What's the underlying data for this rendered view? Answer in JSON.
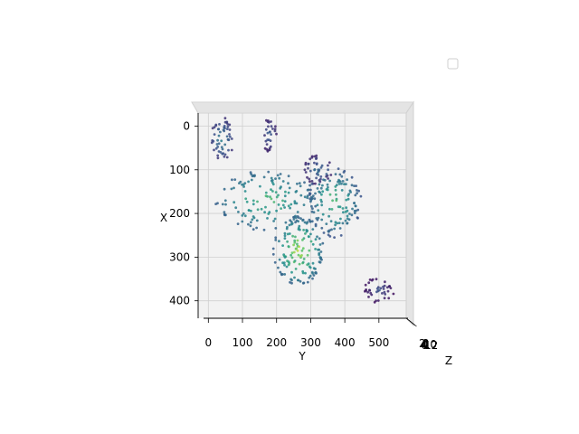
{
  "chart_data": {
    "type": "scatter",
    "projection": "3d",
    "view": "top-down",
    "xlabel": "Y",
    "ylabel": "X",
    "zlabel": "Z",
    "xlim": [
      -30,
      580
    ],
    "ylim": [
      440,
      -30
    ],
    "x_ticks": [
      0,
      100,
      200,
      300,
      400,
      500
    ],
    "y_ticks": [
      0,
      100,
      200,
      300,
      400
    ],
    "z_tick_labels": [
      "2",
      "4",
      "6",
      "8",
      "10",
      "12"
    ],
    "colormap": "viridis",
    "colors": {
      "pane": "#f2f2f2",
      "grid": "#cfcfcf",
      "low": "#46327e",
      "mid": "#277f8e",
      "high": "#fde725"
    },
    "legend": {
      "placement": "top-right",
      "entries": []
    },
    "grid": true,
    "clusters": [
      {
        "cx": 40,
        "cy": 30,
        "rx": 35,
        "ry": 50,
        "n": 55,
        "zmin": 0.15,
        "zmax": 0.5
      },
      {
        "cx": 180,
        "cy": 20,
        "rx": 22,
        "ry": 40,
        "n": 30,
        "zmin": 0.1,
        "zmax": 0.35
      },
      {
        "cx": 170,
        "cy": 170,
        "rx": 150,
        "ry": 70,
        "n": 140,
        "zmin": 0.3,
        "zmax": 0.75
      },
      {
        "cx": 320,
        "cy": 100,
        "rx": 45,
        "ry": 35,
        "n": 45,
        "zmin": 0.1,
        "zmax": 0.45
      },
      {
        "cx": 370,
        "cy": 175,
        "rx": 80,
        "ry": 80,
        "n": 130,
        "zmin": 0.25,
        "zmax": 0.8
      },
      {
        "cx": 265,
        "cy": 285,
        "rx": 75,
        "ry": 80,
        "n": 150,
        "zmin": 0.3,
        "zmax": 1.0
      },
      {
        "cx": 500,
        "cy": 375,
        "rx": 45,
        "ry": 30,
        "n": 40,
        "zmin": 0.05,
        "zmax": 0.3
      }
    ]
  }
}
